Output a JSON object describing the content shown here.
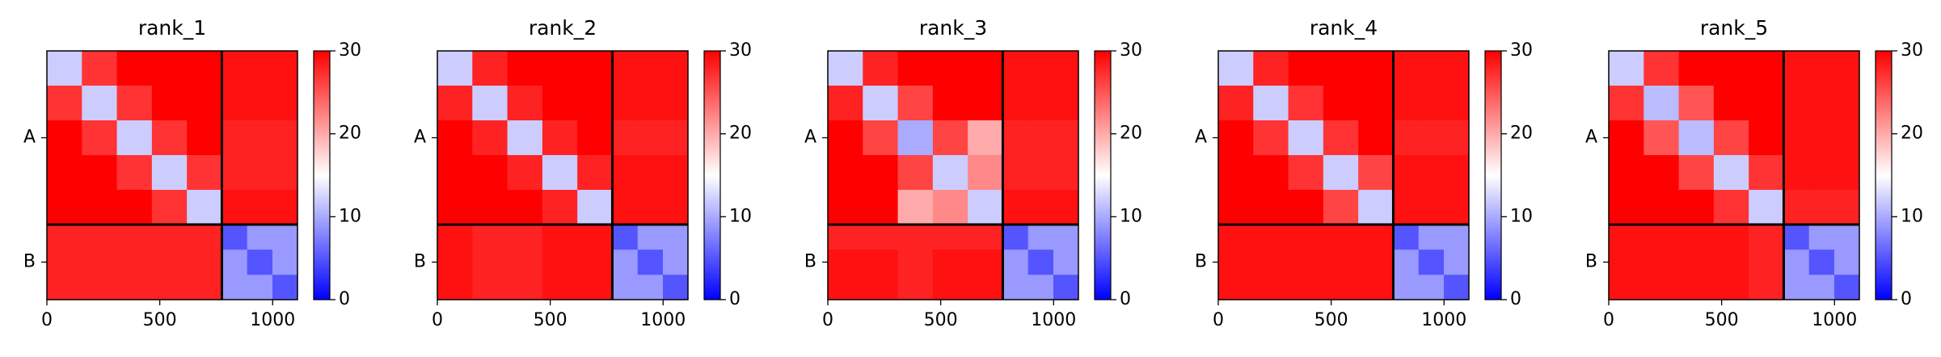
{
  "chart_data": [
    {
      "type": "heatmap",
      "title": "rank_1",
      "colormap": "bwr",
      "x_bins": [
        0,
        155,
        310,
        465,
        620,
        775,
        887,
        999,
        1110
      ],
      "y_bins": [
        0,
        155,
        310,
        465,
        620,
        775,
        887,
        999,
        1110
      ],
      "z": [
        [
          12,
          27,
          30,
          30,
          30,
          29,
          29,
          29
        ],
        [
          27,
          12,
          27,
          30,
          30,
          29,
          29,
          29
        ],
        [
          30,
          27,
          12,
          27,
          30,
          28,
          28,
          28
        ],
        [
          30,
          30,
          27,
          12,
          27,
          28,
          28,
          28
        ],
        [
          30,
          30,
          30,
          27,
          12,
          29,
          29,
          29
        ],
        [
          28,
          28,
          28,
          28,
          28,
          5,
          9,
          9
        ],
        [
          28,
          28,
          28,
          28,
          28,
          9,
          5,
          9
        ],
        [
          28,
          28,
          28,
          28,
          28,
          9,
          9,
          5
        ]
      ],
      "chain_boundary": 775,
      "xlim": [
        0,
        1110
      ],
      "xticks": [
        0,
        500,
        1000
      ],
      "ylim": [
        1110,
        0
      ],
      "yticks": [
        {
          "value": 387.5,
          "label": "A"
        },
        {
          "value": 942.5,
          "label": "B"
        }
      ],
      "zlim": [
        0,
        30
      ],
      "zticks": [
        0,
        10,
        20,
        30
      ]
    },
    {
      "type": "heatmap",
      "title": "rank_2",
      "colormap": "bwr",
      "x_bins": [
        0,
        155,
        310,
        465,
        620,
        775,
        887,
        999,
        1110
      ],
      "y_bins": [
        0,
        155,
        310,
        465,
        620,
        775,
        887,
        999,
        1110
      ],
      "z": [
        [
          12,
          28,
          30,
          30,
          30,
          29,
          29,
          29
        ],
        [
          28,
          12,
          28,
          30,
          30,
          29,
          29,
          29
        ],
        [
          30,
          28,
          12,
          28,
          30,
          28,
          28,
          28
        ],
        [
          30,
          30,
          28,
          12,
          28,
          29,
          29,
          29
        ],
        [
          30,
          30,
          30,
          28,
          12,
          29,
          29,
          29
        ],
        [
          29,
          28,
          28,
          29,
          29,
          5,
          9,
          9
        ],
        [
          29,
          28,
          28,
          29,
          29,
          9,
          5,
          9
        ],
        [
          29,
          28,
          28,
          29,
          29,
          9,
          9,
          5
        ]
      ],
      "chain_boundary": 775,
      "xlim": [
        0,
        1110
      ],
      "xticks": [
        0,
        500,
        1000
      ],
      "ylim": [
        1110,
        0
      ],
      "yticks": [
        {
          "value": 387.5,
          "label": "A"
        },
        {
          "value": 942.5,
          "label": "B"
        }
      ],
      "zlim": [
        0,
        30
      ],
      "zticks": [
        0,
        10,
        20,
        30
      ]
    },
    {
      "type": "heatmap",
      "title": "rank_3",
      "colormap": "bwr",
      "x_bins": [
        0,
        155,
        310,
        465,
        620,
        775,
        887,
        999,
        1110
      ],
      "y_bins": [
        0,
        155,
        310,
        465,
        620,
        775,
        887,
        999,
        1110
      ],
      "z": [
        [
          12,
          28,
          30,
          30,
          30,
          29,
          29,
          29
        ],
        [
          28,
          12,
          26,
          30,
          30,
          29,
          29,
          29
        ],
        [
          30,
          26,
          10,
          26,
          20,
          28,
          28,
          28
        ],
        [
          30,
          30,
          26,
          12,
          22,
          28,
          28,
          28
        ],
        [
          30,
          30,
          20,
          22,
          12,
          29,
          29,
          29
        ],
        [
          28,
          28,
          28,
          28,
          28,
          5,
          9,
          9
        ],
        [
          29,
          29,
          28,
          29,
          29,
          9,
          5,
          9
        ],
        [
          29,
          29,
          28,
          29,
          29,
          9,
          9,
          5
        ]
      ],
      "chain_boundary": 775,
      "xlim": [
        0,
        1110
      ],
      "xticks": [
        0,
        500,
        1000
      ],
      "ylim": [
        1110,
        0
      ],
      "yticks": [
        {
          "value": 387.5,
          "label": "A"
        },
        {
          "value": 942.5,
          "label": "B"
        }
      ],
      "zlim": [
        0,
        30
      ],
      "zticks": [
        0,
        10,
        20,
        30
      ]
    },
    {
      "type": "heatmap",
      "title": "rank_4",
      "colormap": "bwr",
      "x_bins": [
        0,
        155,
        310,
        465,
        620,
        775,
        887,
        999,
        1110
      ],
      "y_bins": [
        0,
        155,
        310,
        465,
        620,
        775,
        887,
        999,
        1110
      ],
      "z": [
        [
          12,
          28,
          30,
          30,
          30,
          29,
          29,
          29
        ],
        [
          28,
          12,
          27,
          30,
          30,
          29,
          29,
          29
        ],
        [
          30,
          27,
          12,
          27,
          30,
          28,
          28,
          28
        ],
        [
          30,
          30,
          27,
          12,
          26,
          29,
          29,
          29
        ],
        [
          30,
          30,
          30,
          26,
          12,
          29,
          29,
          29
        ],
        [
          29,
          29,
          29,
          29,
          29,
          5,
          9,
          9
        ],
        [
          29,
          29,
          29,
          29,
          29,
          9,
          5,
          9
        ],
        [
          29,
          29,
          29,
          29,
          29,
          9,
          9,
          5
        ]
      ],
      "chain_boundary": 775,
      "xlim": [
        0,
        1110
      ],
      "xticks": [
        0,
        500,
        1000
      ],
      "ylim": [
        1110,
        0
      ],
      "yticks": [
        {
          "value": 387.5,
          "label": "A"
        },
        {
          "value": 942.5,
          "label": "B"
        }
      ],
      "zlim": [
        0,
        30
      ],
      "zticks": [
        0,
        10,
        20,
        30
      ]
    },
    {
      "type": "heatmap",
      "title": "rank_5",
      "colormap": "bwr",
      "x_bins": [
        0,
        155,
        310,
        465,
        620,
        775,
        887,
        999,
        1110
      ],
      "y_bins": [
        0,
        155,
        310,
        465,
        620,
        775,
        887,
        999,
        1110
      ],
      "z": [
        [
          12,
          27,
          30,
          30,
          30,
          29,
          29,
          29
        ],
        [
          27,
          11,
          25,
          30,
          30,
          29,
          29,
          29
        ],
        [
          30,
          25,
          11,
          26,
          30,
          29,
          29,
          29
        ],
        [
          30,
          30,
          26,
          12,
          27,
          29,
          29,
          29
        ],
        [
          30,
          30,
          30,
          27,
          12,
          28,
          28,
          28
        ],
        [
          29,
          29,
          29,
          29,
          28,
          5,
          9,
          9
        ],
        [
          29,
          29,
          29,
          29,
          28,
          9,
          5,
          9
        ],
        [
          29,
          29,
          29,
          29,
          28,
          9,
          9,
          5
        ]
      ],
      "chain_boundary": 775,
      "xlim": [
        0,
        1110
      ],
      "xticks": [
        0,
        500,
        1000
      ],
      "ylim": [
        1110,
        0
      ],
      "yticks": [
        {
          "value": 387.5,
          "label": "A"
        },
        {
          "value": 942.5,
          "label": "B"
        }
      ],
      "zlim": [
        0,
        30
      ],
      "zticks": [
        0,
        10,
        20,
        30
      ]
    }
  ]
}
